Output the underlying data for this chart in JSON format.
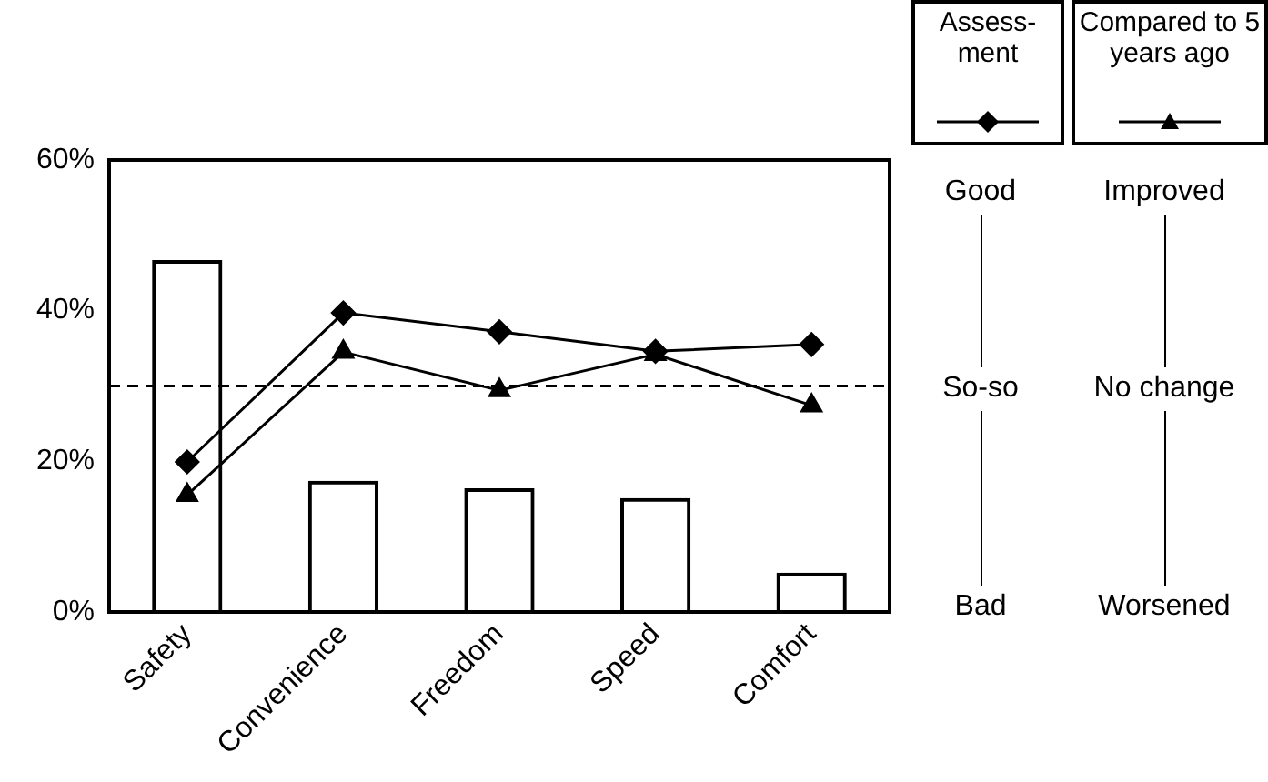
{
  "chart_data": {
    "type": "bar",
    "categories": [
      "Safety",
      "Convenience",
      "Freedom",
      "Speed",
      "Comfort"
    ],
    "series": [
      {
        "color": "#000000",
        "values": [
          46.7,
          17.4,
          16.4,
          15.1,
          5.2
        ]
      },
      {
        "type": "line",
        "name": "Assess-ment",
        "color": "#000000",
        "marker": "diamond",
        "values": [
          19.9,
          39.7,
          37.2,
          34.6,
          35.5
        ]
      },
      {
        "type": "line",
        "name": "Compared to 5 years ago",
        "color": "#000000",
        "marker": "triangle",
        "values": [
          15.5,
          34.5,
          29.4,
          34.2,
          27.4
        ]
      }
    ],
    "ylim": [
      0,
      60
    ],
    "yticks": [
      {
        "value": 0,
        "label": "0%"
      },
      {
        "value": 20,
        "label": "20%"
      },
      {
        "value": 40,
        "label": "40%"
      },
      {
        "value": 60,
        "label": "60%"
      }
    ],
    "annotations": [
      "Good",
      "So-so",
      "Bad",
      "Improved",
      "No change",
      "Worsened"
    ],
    "ref_lines": [
      {
        "axis": "y",
        "value": 30,
        "line_style": "dashed"
      }
    ],
    "legend": "top right",
    "grid": false
  }
}
